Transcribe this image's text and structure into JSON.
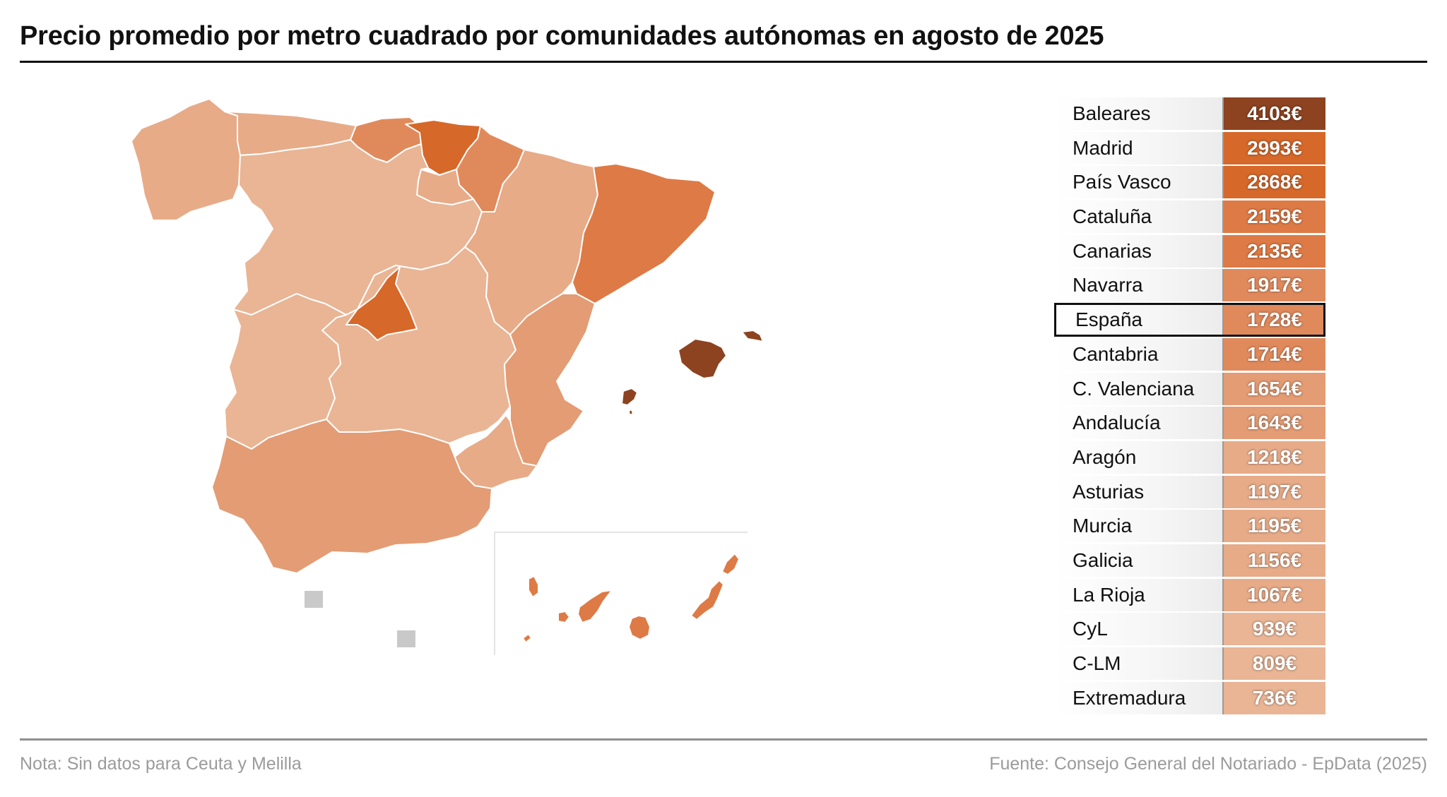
{
  "title": "Precio promedio por metro cuadrado por comunidades autónomas en agosto de 2025",
  "note": "Nota: Sin datos para Ceuta y Melilla",
  "source": "Fuente: Consejo General del Notariado - EpData (2025)",
  "colors": {
    "no_data": "#c9c9c9",
    "region_border": "#ffffff",
    "scale": [
      "#e9b595",
      "#e7ab88",
      "#e39c74",
      "#e08a5c",
      "#de7a45",
      "#d6682a",
      "#8d4320"
    ]
  },
  "map": {
    "regions": [
      {
        "name": "Galicia",
        "fill": "#e7ab88"
      },
      {
        "name": "Asturias",
        "fill": "#e7ab88"
      },
      {
        "name": "Cantabria",
        "fill": "#e08a5c"
      },
      {
        "name": "País Vasco",
        "fill": "#d6682a"
      },
      {
        "name": "Navarra",
        "fill": "#e08a5c"
      },
      {
        "name": "La Rioja",
        "fill": "#e7ab88"
      },
      {
        "name": "Castilla y León",
        "fill": "#e9b595"
      },
      {
        "name": "Aragón",
        "fill": "#e7ab88"
      },
      {
        "name": "Cataluña",
        "fill": "#de7a45"
      },
      {
        "name": "Madrid",
        "fill": "#d6682a"
      },
      {
        "name": "Castilla-La Mancha",
        "fill": "#e9b595"
      },
      {
        "name": "Extremadura",
        "fill": "#e9b595"
      },
      {
        "name": "C. Valenciana",
        "fill": "#e39c74"
      },
      {
        "name": "Murcia",
        "fill": "#e7ab88"
      },
      {
        "name": "Andalucía",
        "fill": "#e39c74"
      },
      {
        "name": "Baleares",
        "fill": "#8d4320"
      },
      {
        "name": "Canarias",
        "fill": "#de7a45"
      },
      {
        "name": "Ceuta",
        "fill": "#c9c9c9"
      },
      {
        "name": "Melilla",
        "fill": "#c9c9c9"
      }
    ]
  },
  "ranking": [
    {
      "name": "Baleares",
      "value": "4103€",
      "color": "#8d4320"
    },
    {
      "name": "Madrid",
      "value": "2993€",
      "color": "#d6682a"
    },
    {
      "name": "País Vasco",
      "value": "2868€",
      "color": "#d6682a"
    },
    {
      "name": "Cataluña",
      "value": "2159€",
      "color": "#de7a45"
    },
    {
      "name": "Canarias",
      "value": "2135€",
      "color": "#de7a45"
    },
    {
      "name": "Navarra",
      "value": "1917€",
      "color": "#e08a5c"
    },
    {
      "name": "España",
      "value": "1728€",
      "color": "#e08a5c",
      "highlight": true
    },
    {
      "name": "Cantabria",
      "value": "1714€",
      "color": "#e08a5c"
    },
    {
      "name": "C. Valenciana",
      "value": "1654€",
      "color": "#e39c74"
    },
    {
      "name": "Andalucía",
      "value": "1643€",
      "color": "#e39c74"
    },
    {
      "name": "Aragón",
      "value": "1218€",
      "color": "#e7ab88"
    },
    {
      "name": "Asturias",
      "value": "1197€",
      "color": "#e7ab88"
    },
    {
      "name": "Murcia",
      "value": "1195€",
      "color": "#e7ab88"
    },
    {
      "name": "Galicia",
      "value": "1156€",
      "color": "#e7ab88"
    },
    {
      "name": "La Rioja",
      "value": "1067€",
      "color": "#e7ab88"
    },
    {
      "name": "CyL",
      "value": "939€",
      "color": "#e9b595"
    },
    {
      "name": "C-LM",
      "value": "809€",
      "color": "#e9b595"
    },
    {
      "name": "Extremadura",
      "value": "736€",
      "color": "#e9b595"
    }
  ]
}
